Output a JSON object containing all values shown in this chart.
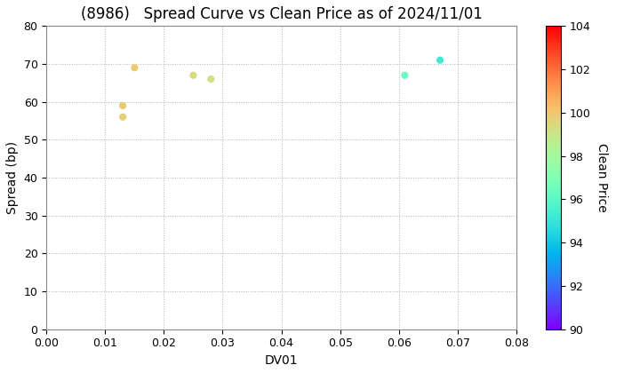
{
  "title": "(8986)   Spread Curve vs Clean Price as of 2024/11/01",
  "xlabel": "DV01",
  "ylabel": "Spread (bp)",
  "colorbar_label": "Clean Price",
  "xlim": [
    0.0,
    0.08
  ],
  "ylim": [
    0,
    80
  ],
  "xticks": [
    0.0,
    0.01,
    0.02,
    0.03,
    0.04,
    0.05,
    0.06,
    0.07,
    0.08
  ],
  "yticks": [
    0,
    10,
    20,
    30,
    40,
    50,
    60,
    70,
    80
  ],
  "colorbar_min": 90,
  "colorbar_max": 104,
  "colorbar_ticks": [
    90,
    92,
    94,
    96,
    98,
    100,
    102,
    104
  ],
  "points": [
    {
      "dv01": 0.013,
      "spread": 59,
      "price": 99.8
    },
    {
      "dv01": 0.015,
      "spread": 69,
      "price": 99.9
    },
    {
      "dv01": 0.013,
      "spread": 56,
      "price": 99.7
    },
    {
      "dv01": 0.025,
      "spread": 67,
      "price": 99.4
    },
    {
      "dv01": 0.028,
      "spread": 66,
      "price": 99.2
    },
    {
      "dv01": 0.061,
      "spread": 67,
      "price": 96.5
    },
    {
      "dv01": 0.067,
      "spread": 71,
      "price": 95.2
    }
  ],
  "background_color": "#ffffff",
  "grid_color": "#aaaaaa",
  "title_fontsize": 12,
  "axis_fontsize": 10,
  "marker_size": 35,
  "figwidth": 7.2,
  "figheight": 4.2,
  "dpi": 100
}
